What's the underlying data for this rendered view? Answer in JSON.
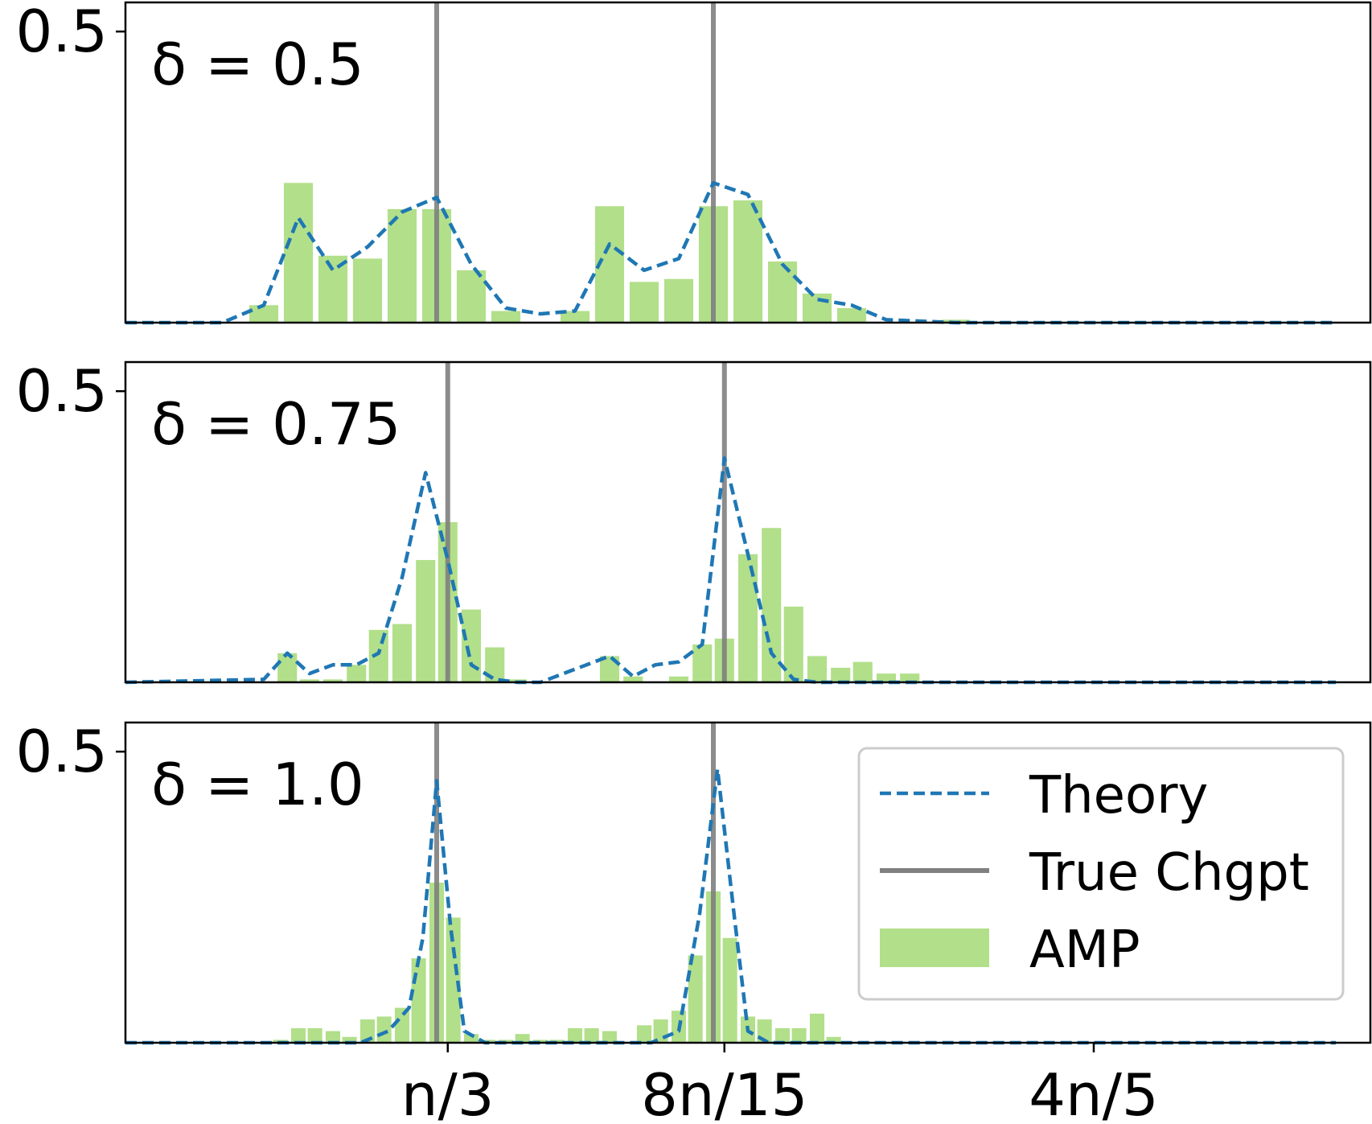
{
  "chart_data": {
    "type": "bar",
    "shared_x_ticks": [
      "n/3",
      "8n/15",
      "4n/5"
    ],
    "x_tick_positions": [
      0.333,
      0.533,
      0.8
    ],
    "xlim": [
      0.1,
      1.0
    ],
    "legend": {
      "placement": "lower-right panel, top-right",
      "entries": [
        {
          "label": "Theory",
          "style": "dashed-line",
          "color": "#1f77b4"
        },
        {
          "label": "True Chgpt",
          "style": "solid-line",
          "color": "#808080"
        },
        {
          "label": "AMP",
          "style": "bar",
          "color": "#b2df8a"
        }
      ]
    },
    "colors": {
      "theory": "#1f77b4",
      "true_chgpt": "#808080",
      "amp": "#b2df8a"
    },
    "panels": [
      {
        "annotation": "δ = 0.5",
        "y_tick": "0.5",
        "ylim": [
          0,
          0.55
        ],
        "true_changepoints": [
          0.325,
          0.525
        ],
        "amp": {
          "bin_width": 0.025,
          "centers": [
            0.2,
            0.225,
            0.25,
            0.275,
            0.3,
            0.325,
            0.35,
            0.375,
            0.4,
            0.425,
            0.45,
            0.475,
            0.5,
            0.525,
            0.55,
            0.575,
            0.6,
            0.625,
            0.65,
            0.675,
            0.7,
            0.725,
            0.75,
            0.775,
            0.8,
            0.825,
            0.85,
            0.875,
            0.9,
            0.925,
            0.95,
            0.975
          ],
          "values": [
            0.03,
            0.24,
            0.115,
            0.11,
            0.195,
            0.195,
            0.09,
            0.02,
            0.0,
            0.02,
            0.2,
            0.07,
            0.075,
            0.2,
            0.21,
            0.105,
            0.05,
            0.025,
            0.0,
            0.0,
            0.005,
            0.0,
            0.0,
            0.0,
            0.0,
            0.0,
            0.0,
            0.0,
            0.0,
            0.0,
            0.0,
            0.0
          ]
        },
        "theory": {
          "x": [
            0.1,
            0.17,
            0.2,
            0.225,
            0.25,
            0.275,
            0.3,
            0.325,
            0.35,
            0.375,
            0.4,
            0.425,
            0.45,
            0.475,
            0.5,
            0.525,
            0.55,
            0.575,
            0.6,
            0.625,
            0.65,
            0.7,
            0.8,
            0.9,
            0.975
          ],
          "y": [
            0.0,
            0.0,
            0.03,
            0.18,
            0.09,
            0.13,
            0.19,
            0.215,
            0.1,
            0.025,
            0.015,
            0.02,
            0.135,
            0.09,
            0.11,
            0.24,
            0.22,
            0.1,
            0.04,
            0.03,
            0.005,
            0.0,
            0.0,
            0.0,
            0.0
          ]
        }
      },
      {
        "annotation": "δ = 0.75",
        "y_tick": "0.5",
        "ylim": [
          0,
          0.55
        ],
        "true_changepoints": [
          0.333,
          0.533
        ],
        "amp": {
          "bin_width": 0.0167,
          "centers": [
            0.217,
            0.233,
            0.25,
            0.267,
            0.283,
            0.3,
            0.317,
            0.333,
            0.35,
            0.367,
            0.383,
            0.4,
            0.417,
            0.433,
            0.45,
            0.467,
            0.483,
            0.5,
            0.517,
            0.533,
            0.55,
            0.567,
            0.583,
            0.6,
            0.617,
            0.633,
            0.65,
            0.667
          ],
          "values": [
            0.05,
            0.005,
            0.005,
            0.03,
            0.09,
            0.1,
            0.21,
            0.275,
            0.125,
            0.06,
            0.005,
            0.0,
            0.0,
            0.0,
            0.045,
            0.01,
            0.0,
            0.01,
            0.065,
            0.075,
            0.22,
            0.265,
            0.13,
            0.045,
            0.025,
            0.035,
            0.015,
            0.015
          ]
        },
        "theory": {
          "x": [
            0.1,
            0.2,
            0.217,
            0.233,
            0.25,
            0.267,
            0.283,
            0.3,
            0.317,
            0.333,
            0.35,
            0.367,
            0.383,
            0.4,
            0.45,
            0.467,
            0.483,
            0.5,
            0.517,
            0.533,
            0.55,
            0.567,
            0.583,
            0.6,
            0.7,
            0.975
          ],
          "y": [
            0.0,
            0.005,
            0.05,
            0.015,
            0.03,
            0.03,
            0.05,
            0.18,
            0.36,
            0.21,
            0.03,
            0.005,
            0.0,
            0.0,
            0.045,
            0.01,
            0.03,
            0.035,
            0.065,
            0.385,
            0.22,
            0.05,
            0.005,
            0.0,
            0.0,
            0.0
          ]
        }
      },
      {
        "annotation": "δ = 1.0",
        "y_tick": "0.5",
        "ylim": [
          0,
          0.55
        ],
        "true_changepoints": [
          0.325,
          0.525
        ],
        "amp": {
          "bin_width": 0.0125,
          "centers": [
            0.212,
            0.225,
            0.237,
            0.25,
            0.262,
            0.275,
            0.287,
            0.3,
            0.312,
            0.325,
            0.337,
            0.35,
            0.362,
            0.375,
            0.387,
            0.4,
            0.412,
            0.425,
            0.437,
            0.45,
            0.462,
            0.475,
            0.487,
            0.5,
            0.512,
            0.525,
            0.537,
            0.55,
            0.562,
            0.575,
            0.587,
            0.6,
            0.612,
            0.625
          ],
          "values": [
            0.005,
            0.025,
            0.025,
            0.02,
            0.01,
            0.04,
            0.045,
            0.06,
            0.145,
            0.275,
            0.215,
            0.015,
            0.005,
            0.005,
            0.015,
            0.005,
            0.005,
            0.025,
            0.025,
            0.02,
            0.0,
            0.03,
            0.04,
            0.055,
            0.15,
            0.26,
            0.18,
            0.045,
            0.04,
            0.025,
            0.025,
            0.05,
            0.01,
            0.0
          ]
        },
        "theory": {
          "x": [
            0.1,
            0.27,
            0.29,
            0.305,
            0.315,
            0.325,
            0.335,
            0.345,
            0.36,
            0.4,
            0.48,
            0.5,
            0.515,
            0.528,
            0.54,
            0.55,
            0.565,
            0.6,
            0.975
          ],
          "y": [
            0.0,
            0.0,
            0.02,
            0.06,
            0.18,
            0.45,
            0.2,
            0.02,
            0.0,
            0.0,
            0.0,
            0.02,
            0.22,
            0.47,
            0.22,
            0.02,
            0.0,
            0.0,
            0.0
          ]
        }
      }
    ]
  }
}
